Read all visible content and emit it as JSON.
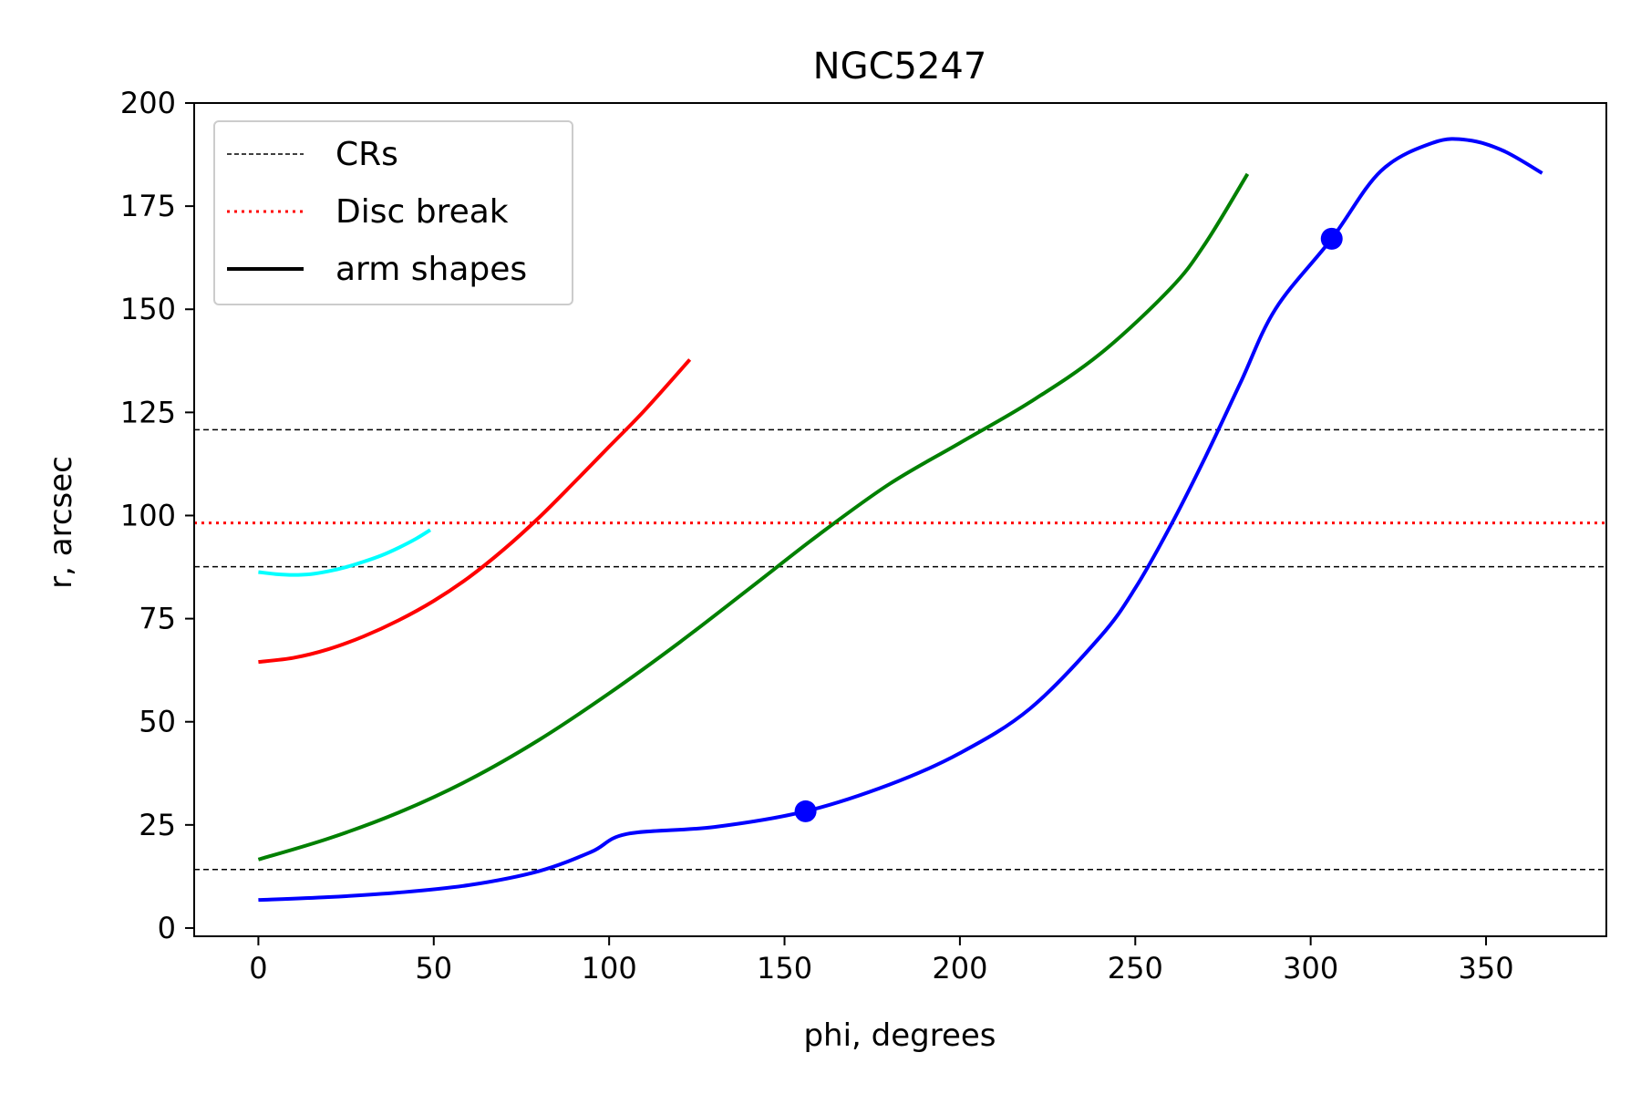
{
  "chart_data": {
    "type": "line",
    "title": "NGC5247",
    "xlabel": "phi, degrees",
    "ylabel": "r, arcsec",
    "xlim": [
      -18.3,
      384.3
    ],
    "ylim": [
      -2,
      200
    ],
    "xticks": [
      0,
      50,
      100,
      150,
      200,
      250,
      300,
      350
    ],
    "yticks": [
      0,
      25,
      50,
      75,
      100,
      125,
      150,
      175,
      200
    ],
    "xtick_labels": [
      "0",
      "50",
      "100",
      "150",
      "200",
      "250",
      "300",
      "350"
    ],
    "ytick_labels": [
      "0",
      "25",
      "50",
      "75",
      "100",
      "125",
      "150",
      "175",
      "200"
    ],
    "grid": false,
    "legend": {
      "position": "upper-left",
      "entries": [
        {
          "label": "CRs",
          "color": "#000000",
          "style": "dashed"
        },
        {
          "label": "Disc break",
          "color": "#ff0000",
          "style": "dotted"
        },
        {
          "label": "arm shapes",
          "color": "#000000",
          "style": "solid"
        }
      ]
    },
    "hlines": [
      {
        "y": 14.2,
        "color": "#000000",
        "style": "dashed",
        "group": "CRs"
      },
      {
        "y": 87.6,
        "color": "#000000",
        "style": "dashed",
        "group": "CRs"
      },
      {
        "y": 120.8,
        "color": "#000000",
        "style": "dashed",
        "group": "CRs"
      },
      {
        "y": 98.2,
        "color": "#ff0000",
        "style": "dotted",
        "group": "Disc break"
      }
    ],
    "series": [
      {
        "color": "#00ffff",
        "x": [
          0,
          5,
          10,
          15,
          20,
          25,
          30,
          35,
          40,
          45,
          49
        ],
        "y": [
          86.3,
          85.8,
          85.6,
          85.8,
          86.5,
          87.5,
          88.8,
          90.3,
          92.2,
          94.4,
          96.5
        ]
      },
      {
        "color": "#ff0000",
        "x": [
          0,
          10,
          20,
          30,
          40,
          50,
          60,
          70,
          80,
          90,
          100,
          110,
          123
        ],
        "y": [
          64.5,
          65.5,
          67.6,
          70.7,
          74.6,
          79.3,
          85.0,
          91.8,
          99.5,
          108.0,
          116.7,
          125.4,
          137.8
        ]
      },
      {
        "color": "#008000",
        "x": [
          0,
          20,
          40,
          60,
          80,
          100,
          120,
          140,
          160,
          180,
          200,
          220,
          240,
          260,
          270,
          282
        ],
        "y": [
          16.6,
          21.7,
          28.0,
          35.9,
          45.6,
          56.9,
          69.2,
          82.3,
          95.5,
          107.7,
          117.6,
          127.5,
          139.2,
          155.0,
          166.0,
          182.8
        ]
      },
      {
        "color": "#0000ff",
        "x": [
          0,
          20,
          40,
          60,
          80,
          95,
          105,
          130,
          156,
          180,
          200,
          220,
          240,
          250,
          260,
          270,
          280,
          290,
          306,
          320,
          335,
          345,
          355,
          366
        ],
        "y": [
          6.8,
          7.5,
          8.6,
          10.4,
          13.8,
          18.5,
          22.8,
          24.5,
          28.3,
          34.8,
          42.4,
          53.2,
          70.6,
          82.4,
          97.4,
          114.2,
          132.2,
          150.1,
          167.1,
          183.5,
          190.4,
          191.0,
          188.4,
          183.0
        ],
        "markers": [
          [
            156,
            28.3
          ],
          [
            306,
            167.1
          ]
        ]
      }
    ]
  }
}
